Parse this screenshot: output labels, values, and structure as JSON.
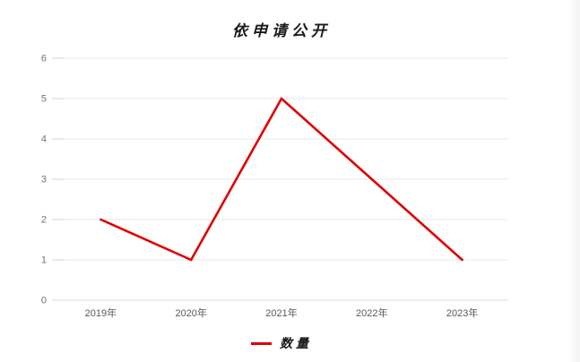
{
  "chart_data": {
    "type": "line",
    "title": "依申请公开",
    "categories": [
      "2019年",
      "2020年",
      "2021年",
      "2022年",
      "2023年"
    ],
    "series": [
      {
        "name": "数量",
        "color": "#e00000",
        "values": [
          2,
          1,
          5,
          3,
          1
        ]
      }
    ],
    "ylim": [
      0,
      6
    ],
    "y_ticks": [
      0,
      1,
      2,
      3,
      4,
      5,
      6
    ],
    "grid": true,
    "legend_position": "bottom",
    "colors": {
      "gridline": "#e7e7e7",
      "tick_mark": "#d4d4d4",
      "axis_line": "#d9d9d9",
      "y_label": "#737373",
      "x_label": "#595959"
    }
  }
}
